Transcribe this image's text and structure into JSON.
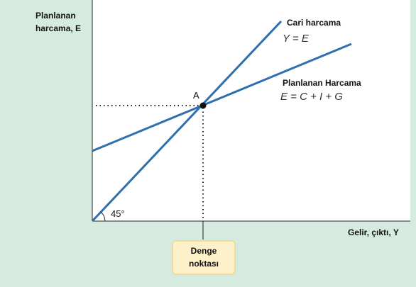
{
  "axes": {
    "y_label": [
      "Planlanan",
      "harcama, E"
    ],
    "x_label": "Gelir, çıktı, Y"
  },
  "lines": [
    {
      "name": "Cari harcama",
      "equation": "Y = E"
    },
    {
      "name": "Planlanan Harcama",
      "equation": "E = C + I + G"
    }
  ],
  "angle_label": "45°",
  "point_label": "A",
  "callout": [
    "Denge",
    "noktası"
  ]
}
